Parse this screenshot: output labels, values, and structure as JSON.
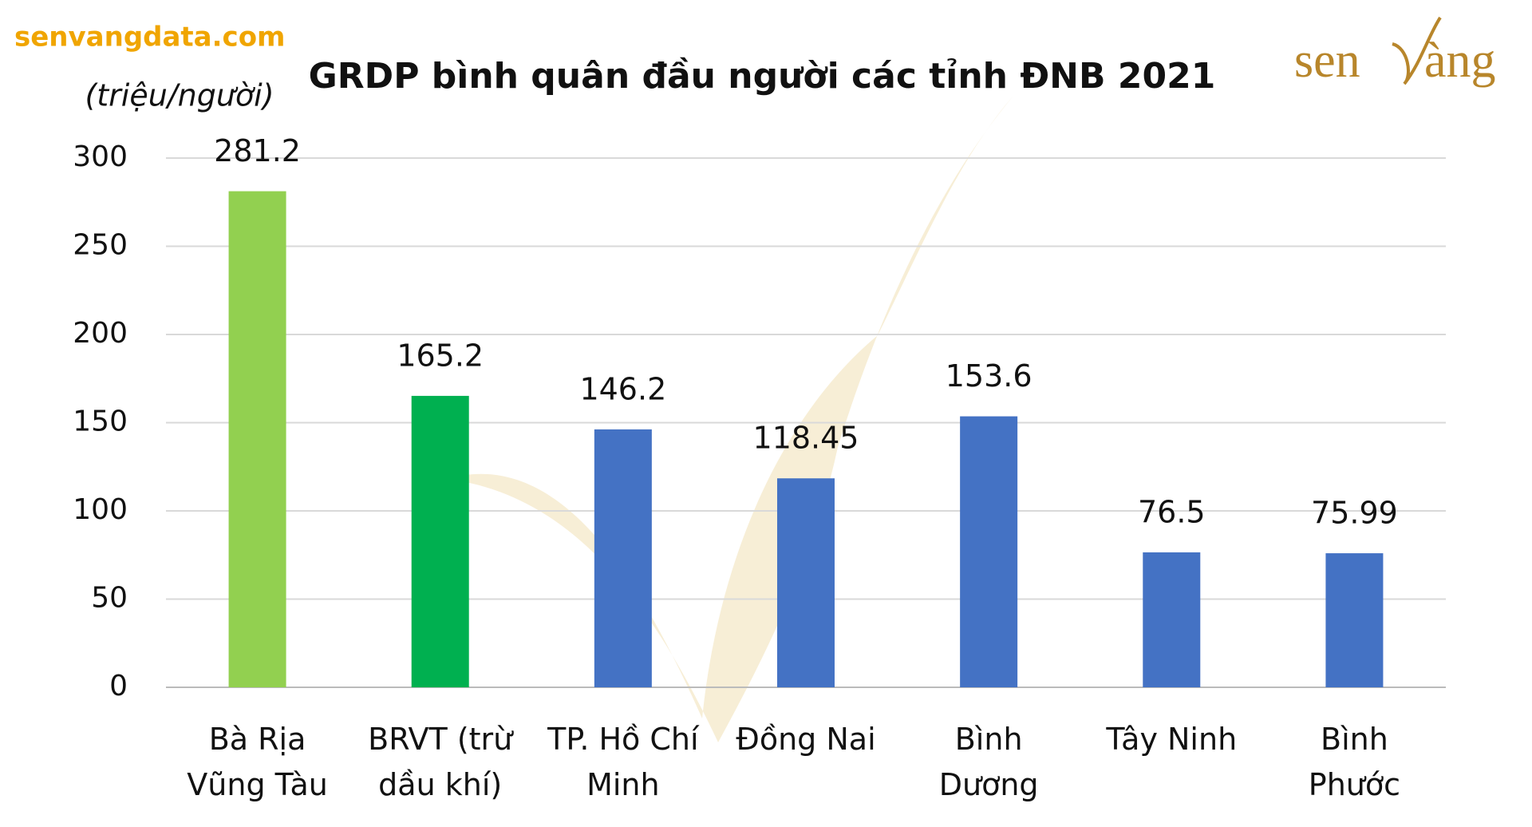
{
  "site": "senvangdata.com",
  "logo": {
    "left": "sen",
    "right": "àng"
  },
  "chart_data": {
    "type": "bar",
    "title": "GRDP bình quân đầu người các tỉnh ĐNB 2021",
    "y_label": "(triệu/người)",
    "categories": [
      "Bà Rịa Vũng Tàu",
      "BRVT (trừ dầu khí)",
      "TP. Hồ Chí Minh",
      "Đồng Nai",
      "Bình Dương",
      "Tây Ninh",
      "Bình Phước"
    ],
    "values": [
      281.2,
      165.2,
      146.2,
      118.45,
      153.6,
      76.5,
      75.99
    ],
    "colors": [
      "#92d050",
      "#00b050",
      "#4472c4",
      "#4472c4",
      "#4472c4",
      "#4472c4",
      "#4472c4"
    ],
    "ylim": [
      0,
      300
    ],
    "yticks": [
      0,
      50,
      100,
      150,
      200,
      250,
      300
    ],
    "grid": true
  }
}
